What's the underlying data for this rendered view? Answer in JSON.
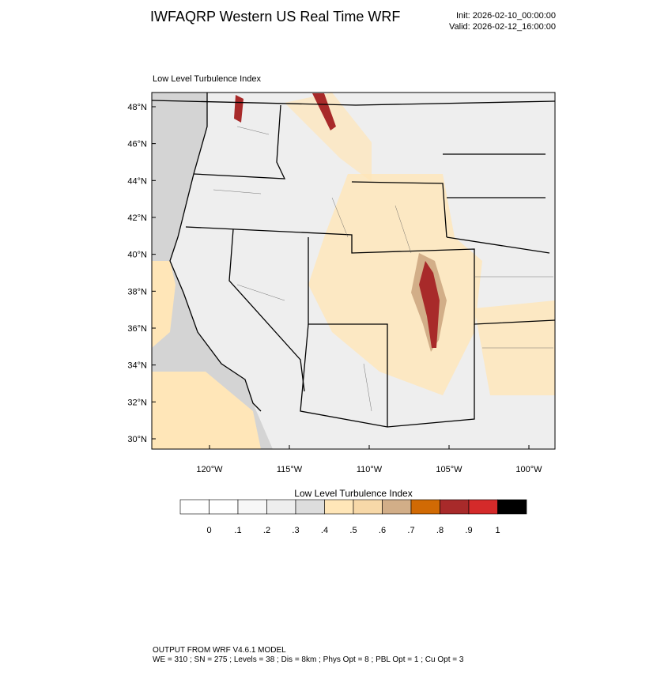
{
  "header": {
    "title": "IWFAQRP Western US Real Time WRF",
    "init": "Init: 2026-02-10_00:00:00",
    "valid": "Valid: 2026-02-12_16:00:00"
  },
  "map": {
    "subtitle": "Low Level Turbulence Index",
    "lat_labels": [
      "30°N",
      "32°N",
      "34°N",
      "36°N",
      "38°N",
      "40°N",
      "42°N",
      "44°N",
      "46°N",
      "48°N"
    ],
    "lon_labels": [
      "120°W",
      "115°W",
      "110°W",
      "105°W",
      "100°W"
    ]
  },
  "colorbar": {
    "title": "Low Level Turbulence Index",
    "colors": [
      "#ffffff",
      "#f7f7f7",
      "#eeeeee",
      "#dddddd",
      "#ffe6b8",
      "#f7d8a8",
      "#d2ae88",
      "#d16a04",
      "#a82a2a",
      "#d42a2a",
      "#000000"
    ],
    "labels": [
      "0",
      ".1",
      ".2",
      ".3",
      ".4",
      ".5",
      ".6",
      ".7",
      ".8",
      ".9",
      "1"
    ]
  },
  "footer": {
    "line1": "OUTPUT FROM WRF V4.6.1 MODEL",
    "line2": "WE = 310 ; SN = 275 ; Levels = 38 ; Dis = 8km ; Phys Opt = 8 ; PBL Opt = 1 ; Cu Opt = 3"
  }
}
